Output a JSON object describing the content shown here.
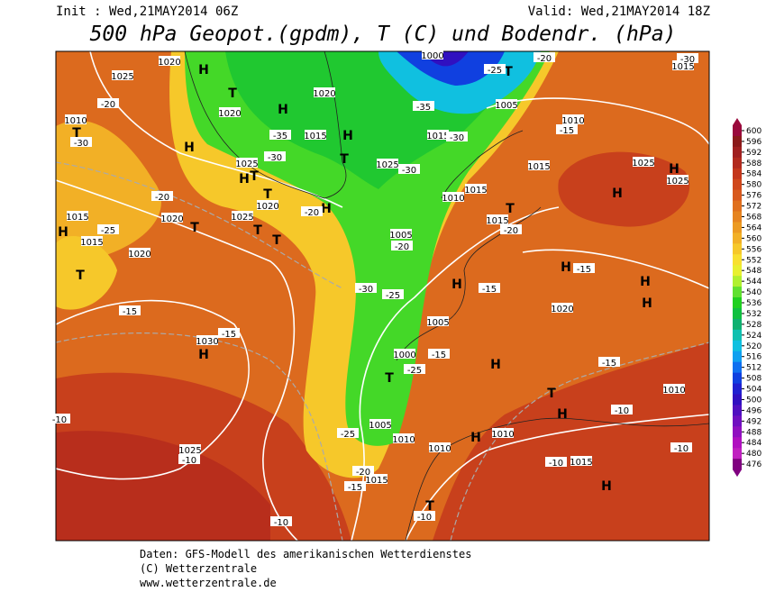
{
  "header": {
    "init": "Init : Wed,21MAY2014 06Z",
    "valid": "Valid: Wed,21MAY2014 18Z",
    "title": "500 hPa Geopot.(gpdm), T (C) und Bodendr. (hPa)"
  },
  "map": {
    "pressure_labels": [
      "1020",
      "1025",
      "1010",
      "1020",
      "1015",
      "1020",
      "1025",
      "1025",
      "1015",
      "1005",
      "1010",
      "1015",
      "1025",
      "1025",
      "1015",
      "1010",
      "1015",
      "1015",
      "1020",
      "1025",
      "1020",
      "1015",
      "1020",
      "1005",
      "1030",
      "1020",
      "1005",
      "1000",
      "1010",
      "1005",
      "1010",
      "1010",
      "1010",
      "1025",
      "1015",
      "1015",
      "1000",
      "1015"
    ],
    "high_low": [
      "H",
      "H",
      "H",
      "H",
      "H",
      "H",
      "H",
      "H",
      "H",
      "H",
      "H",
      "H",
      "H",
      "H",
      "H",
      "H",
      "H",
      "H",
      "T",
      "T",
      "T",
      "T",
      "T",
      "T",
      "T",
      "T",
      "T",
      "T",
      "T",
      "T",
      "T",
      "T"
    ],
    "temperature_labels": [
      "-20",
      "-30",
      "-35",
      "-30",
      "-20",
      "-25",
      "-20",
      "-30",
      "-35",
      "-20",
      "-25",
      "-30",
      "-15",
      "-15",
      "-25",
      "-15",
      "-15",
      "-15",
      "-15",
      "-10",
      "-10",
      "-10",
      "-10",
      "-10",
      "-25",
      "-20",
      "-15",
      "-10",
      "-10",
      "-20",
      "-15",
      "-25",
      "-30",
      "-20",
      "-30"
    ]
  },
  "colorbar": {
    "ticks": [
      600,
      596,
      592,
      588,
      584,
      580,
      576,
      572,
      568,
      564,
      560,
      556,
      552,
      548,
      544,
      540,
      536,
      532,
      528,
      524,
      520,
      516,
      512,
      508,
      504,
      500,
      496,
      492,
      488,
      484,
      480,
      476
    ],
    "colors": [
      "#9a0a3c",
      "#8b1a1a",
      "#a02020",
      "#b22a1e",
      "#c4371c",
      "#d0481c",
      "#d85a1e",
      "#e0701e",
      "#e68420",
      "#ec9a22",
      "#f2b026",
      "#f6c82a",
      "#f8e030",
      "#e8f030",
      "#b0f030",
      "#60e030",
      "#20d020",
      "#10c040",
      "#10b070",
      "#10c0b0",
      "#10c0e0",
      "#10a0f0",
      "#1070f0",
      "#1040e0",
      "#2020d0",
      "#3010c0",
      "#5010c0",
      "#7010c0",
      "#9010c0",
      "#b010c0",
      "#c020c0",
      "#800080"
    ]
  },
  "footer": {
    "line1": "Daten: GFS-Modell des amerikanischen Wetterdienstes",
    "line2": "(C) Wetterzentrale",
    "line3": "www.wetterzentrale.de"
  }
}
